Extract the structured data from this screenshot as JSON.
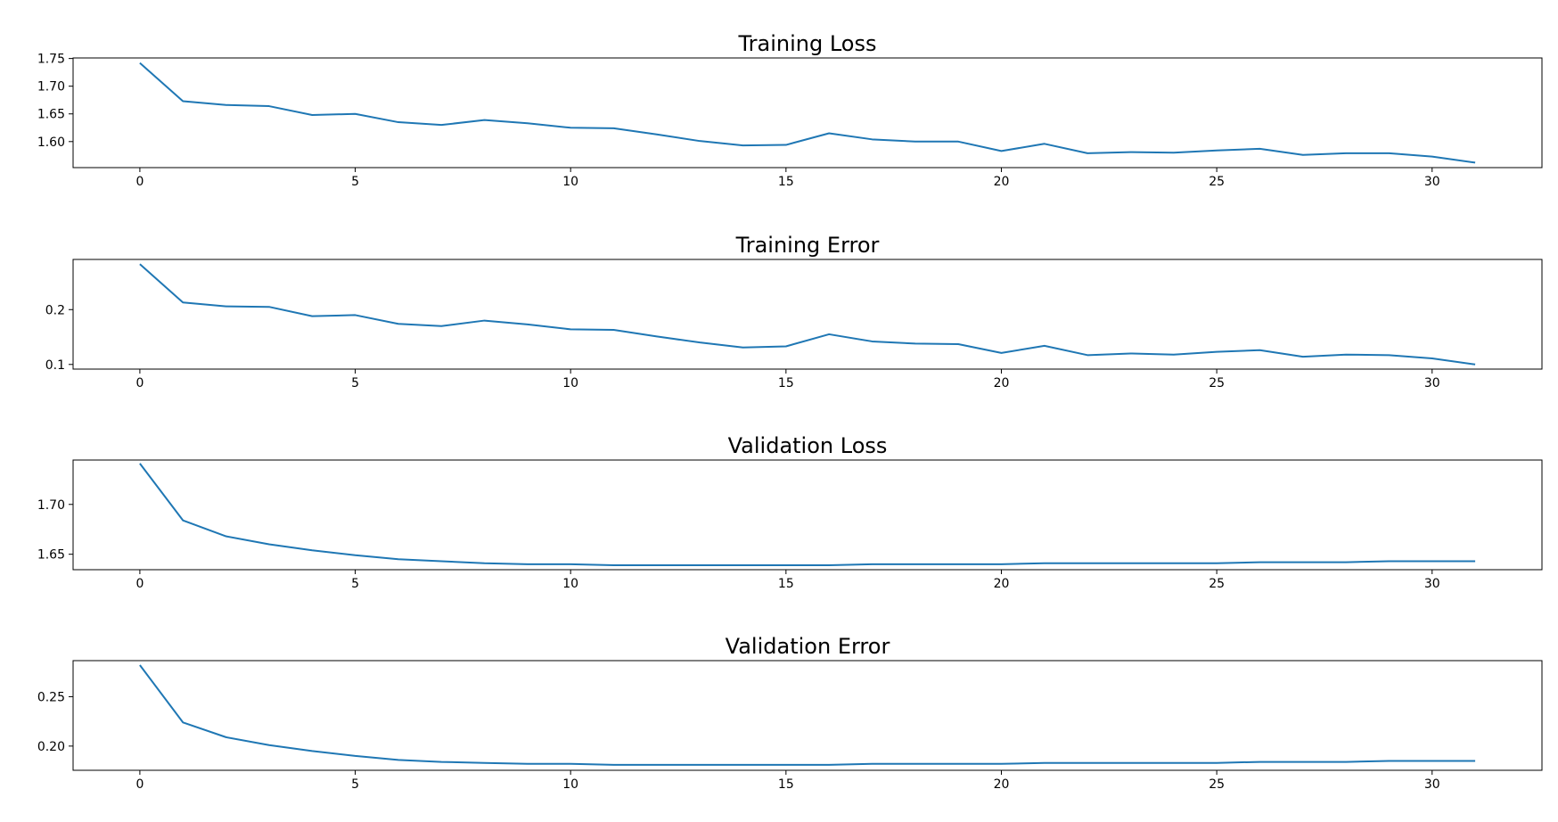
{
  "chart_data": [
    {
      "type": "line",
      "title": "Training Loss",
      "xlabel": "",
      "ylabel": "",
      "x": [
        0,
        1,
        2,
        3,
        4,
        5,
        6,
        7,
        8,
        9,
        10,
        11,
        12,
        13,
        14,
        15,
        16,
        17,
        18,
        19,
        20,
        21,
        22,
        23,
        24,
        25,
        26,
        27,
        28,
        29,
        30,
        31
      ],
      "series": [
        {
          "values": [
            1.742,
            1.673,
            1.666,
            1.664,
            1.648,
            1.65,
            1.635,
            1.63,
            1.639,
            1.633,
            1.625,
            1.624,
            1.613,
            1.601,
            1.593,
            1.594,
            1.615,
            1.604,
            1.6,
            1.6,
            1.583,
            1.596,
            1.579,
            1.581,
            1.58,
            1.584,
            1.587,
            1.576,
            1.579,
            1.579,
            1.573,
            1.562
          ],
          "color": "#1f77b4"
        }
      ],
      "xlim": [
        -1.55,
        32.55
      ],
      "ylim": [
        1.553,
        1.751
      ],
      "xticks": [
        0,
        5,
        10,
        15,
        20,
        25,
        30
      ],
      "yticks": [
        1.6,
        1.65,
        1.7,
        1.75
      ],
      "ytick_labels": [
        "1.60",
        "1.65",
        "1.70",
        "1.75"
      ],
      "grid": false,
      "legend": "none"
    },
    {
      "type": "line",
      "title": "Training Error",
      "xlabel": "",
      "ylabel": "",
      "x": [
        0,
        1,
        2,
        3,
        4,
        5,
        6,
        7,
        8,
        9,
        10,
        11,
        12,
        13,
        14,
        15,
        16,
        17,
        18,
        19,
        20,
        21,
        22,
        23,
        24,
        25,
        26,
        27,
        28,
        29,
        30,
        31
      ],
      "series": [
        {
          "values": [
            0.283,
            0.213,
            0.206,
            0.205,
            0.188,
            0.19,
            0.174,
            0.17,
            0.18,
            0.173,
            0.164,
            0.163,
            0.151,
            0.14,
            0.131,
            0.133,
            0.155,
            0.142,
            0.138,
            0.137,
            0.121,
            0.134,
            0.117,
            0.12,
            0.118,
            0.123,
            0.126,
            0.114,
            0.118,
            0.117,
            0.111,
            0.1
          ],
          "color": "#1f77b4"
        }
      ],
      "xlim": [
        -1.55,
        32.55
      ],
      "ylim": [
        0.0915,
        0.2915
      ],
      "xticks": [
        0,
        5,
        10,
        15,
        20,
        25,
        30
      ],
      "yticks": [
        0.1,
        0.2
      ],
      "ytick_labels": [
        "0.1",
        "0.2"
      ],
      "grid": false,
      "legend": "none"
    },
    {
      "type": "line",
      "title": "Validation Loss",
      "xlabel": "",
      "ylabel": "",
      "x": [
        0,
        1,
        2,
        3,
        4,
        5,
        6,
        7,
        8,
        9,
        10,
        11,
        12,
        13,
        14,
        15,
        16,
        17,
        18,
        19,
        20,
        21,
        22,
        23,
        24,
        25,
        26,
        27,
        28,
        29,
        30,
        31
      ],
      "series": [
        {
          "values": [
            1.741,
            1.684,
            1.668,
            1.66,
            1.654,
            1.649,
            1.645,
            1.643,
            1.641,
            1.64,
            1.64,
            1.639,
            1.639,
            1.639,
            1.639,
            1.639,
            1.639,
            1.64,
            1.64,
            1.64,
            1.64,
            1.641,
            1.641,
            1.641,
            1.641,
            1.641,
            1.642,
            1.642,
            1.642,
            1.643,
            1.643,
            1.643
          ],
          "color": "#1f77b4"
        }
      ],
      "xlim": [
        -1.55,
        32.55
      ],
      "ylim": [
        1.6345,
        1.7445
      ],
      "xticks": [
        0,
        5,
        10,
        15,
        20,
        25,
        30
      ],
      "yticks": [
        1.65,
        1.7
      ],
      "ytick_labels": [
        "1.65",
        "1.70"
      ],
      "grid": false,
      "legend": "none"
    },
    {
      "type": "line",
      "title": "Validation Error",
      "xlabel": "",
      "ylabel": "",
      "x": [
        0,
        1,
        2,
        3,
        4,
        5,
        6,
        7,
        8,
        9,
        10,
        11,
        12,
        13,
        14,
        15,
        16,
        17,
        18,
        19,
        20,
        21,
        22,
        23,
        24,
        25,
        26,
        27,
        28,
        29,
        30,
        31
      ],
      "series": [
        {
          "values": [
            0.282,
            0.224,
            0.209,
            0.201,
            0.195,
            0.19,
            0.186,
            0.184,
            0.183,
            0.182,
            0.182,
            0.181,
            0.181,
            0.181,
            0.181,
            0.181,
            0.181,
            0.182,
            0.182,
            0.182,
            0.182,
            0.183,
            0.183,
            0.183,
            0.183,
            0.183,
            0.184,
            0.184,
            0.184,
            0.185,
            0.185,
            0.185
          ],
          "color": "#1f77b4"
        }
      ],
      "xlim": [
        -1.55,
        32.55
      ],
      "ylim": [
        0.1755,
        0.2865
      ],
      "xticks": [
        0,
        5,
        10,
        15,
        20,
        25,
        30
      ],
      "yticks": [
        0.2,
        0.25
      ],
      "ytick_labels": [
        "0.20",
        "0.25"
      ],
      "grid": false,
      "legend": "none"
    }
  ]
}
